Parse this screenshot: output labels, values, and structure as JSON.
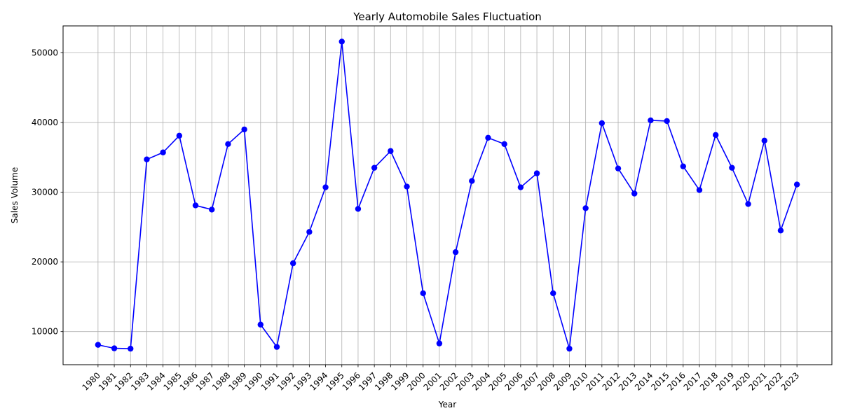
{
  "chart_data": {
    "type": "line",
    "title": "Yearly Automobile Sales Fluctuation",
    "xlabel": "Year",
    "ylabel": "Sales Volume",
    "x": [
      "1980",
      "1981",
      "1982",
      "1983",
      "1984",
      "1985",
      "1986",
      "1987",
      "1988",
      "1989",
      "1990",
      "1991",
      "1992",
      "1993",
      "1994",
      "1995",
      "1996",
      "1997",
      "1998",
      "1999",
      "2000",
      "2001",
      "2002",
      "2003",
      "2004",
      "2005",
      "2006",
      "2007",
      "2008",
      "2009",
      "2010",
      "2011",
      "2012",
      "2013",
      "2014",
      "2015",
      "2016",
      "2017",
      "2018",
      "2019",
      "2020",
      "2021",
      "2022",
      "2023"
    ],
    "series": [
      {
        "values": [
          8100,
          7600,
          7550,
          34700,
          35700,
          38100,
          28100,
          27500,
          36900,
          39000,
          11000,
          7800,
          19800,
          24300,
          30700,
          51600,
          27600,
          33500,
          35900,
          30800,
          15500,
          8300,
          21400,
          31600,
          37800,
          36900,
          30700,
          32700,
          15500,
          7550,
          27700,
          39900,
          33400,
          29800,
          40300,
          40200,
          33700,
          30300,
          38200,
          33500,
          28300,
          37400,
          24500,
          31100
        ],
        "color": "#0000ff",
        "marker": "circle"
      }
    ],
    "ylim": [
      5250,
      53850
    ],
    "yticks": [
      10000,
      20000,
      30000,
      40000,
      50000
    ],
    "grid": true,
    "legend": "none",
    "xtick_rotation": 45
  }
}
